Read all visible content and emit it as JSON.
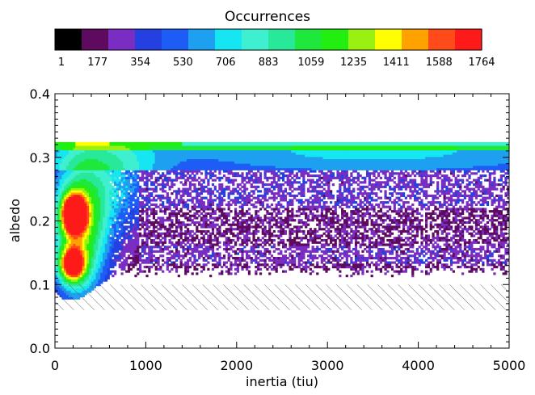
{
  "chart_data": {
    "type": "heatmap",
    "xlabel": "inertia (tiu)",
    "ylabel": "albedo",
    "xlim": [
      0,
      5000
    ],
    "ylim": [
      0,
      0.4
    ],
    "x_ticks": [
      "0",
      "1000",
      "2000",
      "3000",
      "4000",
      "5000"
    ],
    "x_tick_values": [
      0,
      1000,
      2000,
      3000,
      4000,
      5000
    ],
    "y_ticks": [
      "0.0",
      "0.1",
      "0.2",
      "0.3",
      "0.4"
    ],
    "y_tick_values": [
      0.0,
      0.1,
      0.2,
      0.3,
      0.4
    ],
    "colorbar": {
      "title": "Occurrences",
      "labels": [
        "1",
        "177",
        "354",
        "530",
        "706",
        "883",
        "1059",
        "1235",
        "1411",
        "1588",
        "1764"
      ],
      "values": [
        1,
        177,
        354,
        530,
        706,
        883,
        1059,
        1235,
        1411,
        1588,
        1764
      ],
      "colors": [
        "#000000",
        "#5e0a5e",
        "#7a2dc2",
        "#2440e0",
        "#1e5cf6",
        "#1ea0f0",
        "#16e6f2",
        "#3ff0d0",
        "#28e89a",
        "#1ee83c",
        "#22ee10",
        "#9af010",
        "#ffff00",
        "#ffa200",
        "#ff4b1a",
        "#ff1a1a"
      ]
    },
    "data_extent": {
      "albedo_max": 0.32,
      "albedo_cutoff_region_max": 0.1,
      "hatched_region": {
        "albedo_min": 0.06,
        "albedo_max": 0.1
      }
    },
    "peak": {
      "inertia": 200,
      "albedo": 0.21,
      "occurrences": 1764
    },
    "secondary_peak": {
      "inertia": 180,
      "albedo": 0.13
    }
  }
}
